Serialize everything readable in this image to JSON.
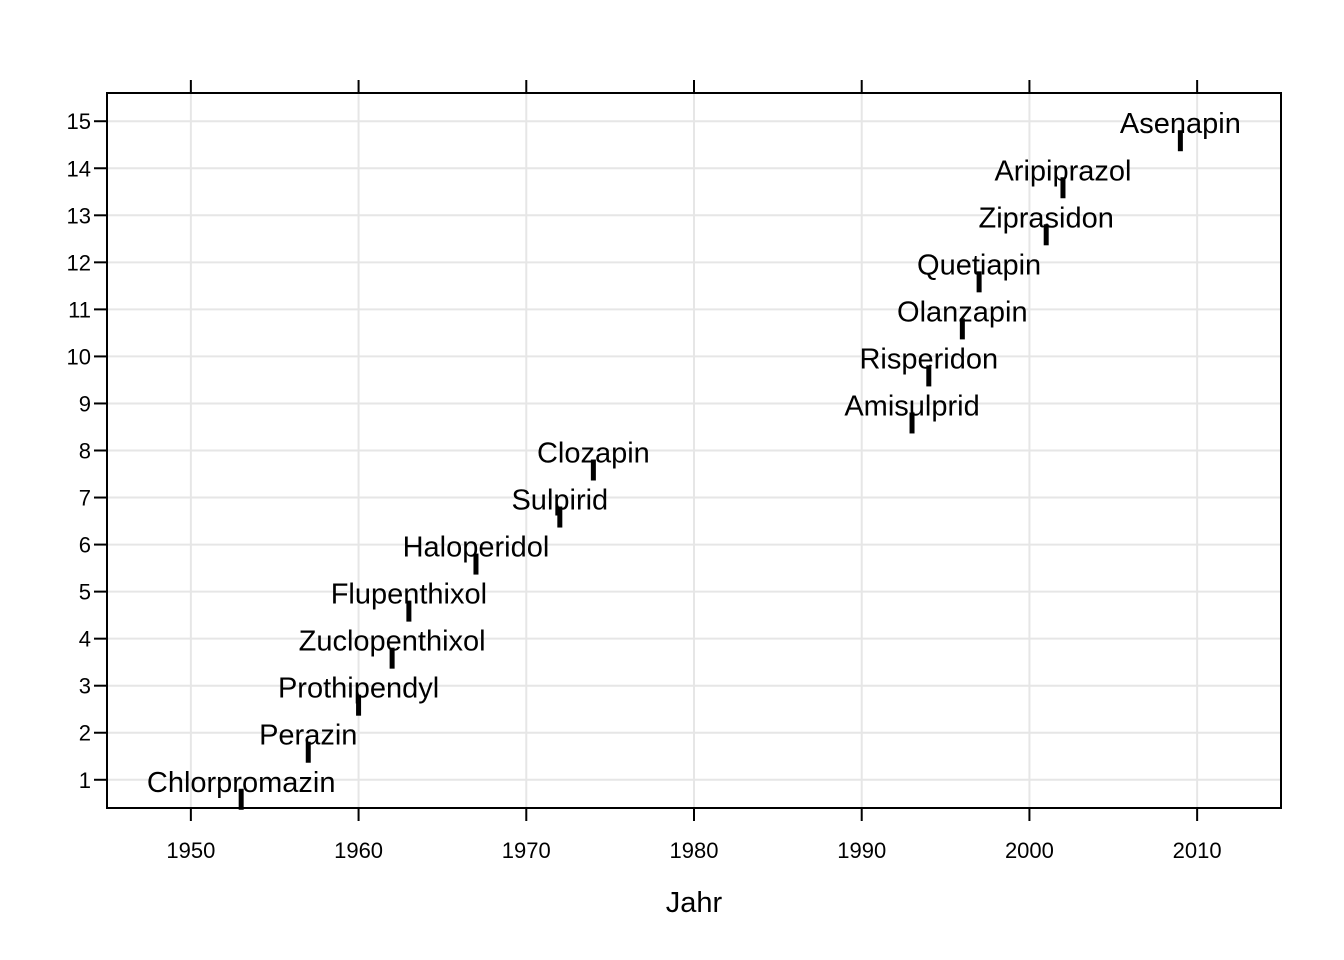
{
  "chart_data": {
    "type": "scatter",
    "title": "",
    "xlabel": "Jahr",
    "ylabel": "",
    "xlim": [
      1945,
      2015
    ],
    "ylim": [
      0.4,
      15.6
    ],
    "xticks": [
      1950,
      1960,
      1970,
      1980,
      1990,
      2000,
      2010
    ],
    "yticks": [
      1,
      2,
      3,
      4,
      5,
      6,
      7,
      8,
      9,
      10,
      11,
      12,
      13,
      14,
      15
    ],
    "grid": true,
    "marker": "vertical-bar",
    "mark_color": "#000000",
    "grid_color": "#e6e6e6",
    "points": [
      {
        "label": "Chlorpromazin",
        "x": 1953,
        "y": 1
      },
      {
        "label": "Perazin",
        "x": 1957,
        "y": 2
      },
      {
        "label": "Prothipendyl",
        "x": 1960,
        "y": 3
      },
      {
        "label": "Zuclopenthixol",
        "x": 1962,
        "y": 4
      },
      {
        "label": "Flupenthixol",
        "x": 1963,
        "y": 5
      },
      {
        "label": "Haloperidol",
        "x": 1967,
        "y": 6
      },
      {
        "label": "Sulpirid",
        "x": 1972,
        "y": 7
      },
      {
        "label": "Clozapin",
        "x": 1974,
        "y": 8
      },
      {
        "label": "Amisulprid",
        "x": 1993,
        "y": 9
      },
      {
        "label": "Risperidon",
        "x": 1994,
        "y": 10
      },
      {
        "label": "Olanzapin",
        "x": 1996,
        "y": 11
      },
      {
        "label": "Quetiapin",
        "x": 1997,
        "y": 12
      },
      {
        "label": "Ziprasidon",
        "x": 2001,
        "y": 13
      },
      {
        "label": "Aripiprazol",
        "x": 2002,
        "y": 14
      },
      {
        "label": "Asenapin",
        "x": 2009,
        "y": 15
      }
    ]
  }
}
